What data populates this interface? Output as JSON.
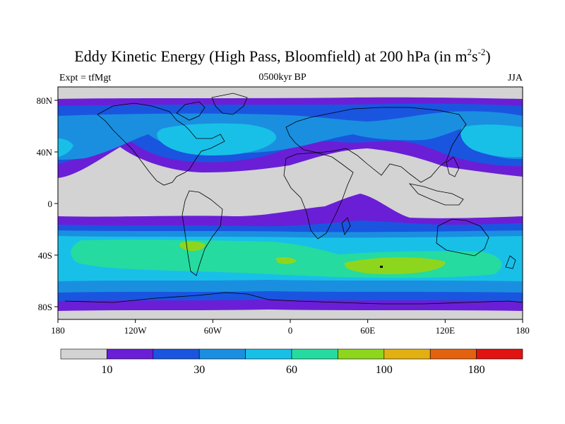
{
  "title": {
    "prefix": "Eddy Kinetic Energy (High Pass, Bloomfield) at 200 hPa (in m",
    "sup1": "2",
    "mid": "s",
    "sup2": "-2",
    "suffix": ")"
  },
  "subtitle": "0500kyr BP",
  "left_label": "Expt = tfMgt",
  "right_label": "JJA",
  "map": {
    "lat_ticks": [
      "80N",
      "40N",
      "0",
      "40S",
      "80S"
    ],
    "lon_ticks": [
      "180",
      "120W",
      "60W",
      "0",
      "60E",
      "120E",
      "180"
    ]
  },
  "colorbar": {
    "colors": [
      "#d3d3d3",
      "#6a1fd6",
      "#1a55e0",
      "#1a8fe0",
      "#18c0e8",
      "#25dba0",
      "#8ed61e",
      "#e3b012",
      "#e3620f",
      "#e01212"
    ],
    "labels": [
      "10",
      "30",
      "60",
      "100",
      "180"
    ]
  }
}
